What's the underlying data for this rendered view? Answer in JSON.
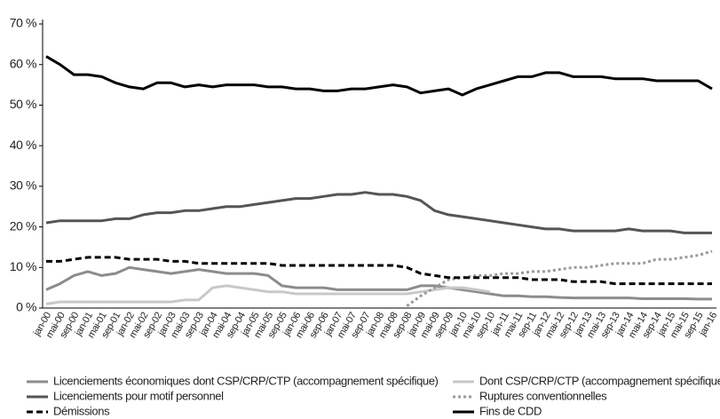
{
  "chart_data": {
    "type": "line",
    "categories": [
      "jan-00",
      "mai-00",
      "sep-00",
      "jan-01",
      "mai-01",
      "sep-01",
      "jan-02",
      "mai-02",
      "sep-02",
      "jan-03",
      "mai-03",
      "sep-03",
      "jan-04",
      "mai-04",
      "sep-04",
      "jan-05",
      "mai-05",
      "sep-05",
      "jan-06",
      "mai-06",
      "sep-06",
      "jan-07",
      "mai-07",
      "sep-07",
      "jan-08",
      "mai-08",
      "sep-08",
      "jan-09",
      "mai-09",
      "sep-09",
      "jan-10",
      "mai-10",
      "sep-10",
      "jan-11",
      "mai-11",
      "sep-11",
      "jan-12",
      "mai-12",
      "sep-12",
      "jan-13",
      "mai-13",
      "sep-13",
      "jan-14",
      "mai-14",
      "sep-14",
      "jan-15",
      "mai-15",
      "sep-15",
      "jan-16"
    ],
    "ylim": [
      0,
      70
    ],
    "yticks": [
      {
        "value": 0,
        "label": "0 %"
      },
      {
        "value": 10,
        "label": "10 %"
      },
      {
        "value": 20,
        "label": "20 %"
      },
      {
        "value": 30,
        "label": "30 %"
      },
      {
        "value": 40,
        "label": "40 %"
      },
      {
        "value": 50,
        "label": "50 %"
      },
      {
        "value": 60,
        "label": "60 %"
      },
      {
        "value": 70,
        "label": "70 %"
      }
    ],
    "series": [
      {
        "name": "Licenciements économiques dont CSP/CRP/CTP (accompagnement spécifique)",
        "color": "#8c8c8c",
        "dash": "solid",
        "values": [
          4.5,
          6,
          8,
          9,
          8,
          8.5,
          10,
          9.5,
          9,
          8.5,
          9,
          9.5,
          9,
          8.5,
          8.5,
          8.5,
          8,
          5.5,
          5,
          5,
          5,
          4.5,
          4.5,
          4.5,
          4.5,
          4.5,
          4.5,
          5.5,
          5.5,
          5,
          4.5,
          4,
          3.5,
          3,
          3,
          2.8,
          2.8,
          2.6,
          2.5,
          2.5,
          2.5,
          2.5,
          2.5,
          2.3,
          2.3,
          2.3,
          2.3,
          2.2,
          2.2
        ]
      },
      {
        "name": "Dont CSP/CRP/CTP (accompagnement spécifique)",
        "color": "#c8c8c8",
        "dash": "solid",
        "values": [
          1,
          1.5,
          1.5,
          1.5,
          1.5,
          1.5,
          1.5,
          1.5,
          1.5,
          1.5,
          2,
          2,
          5,
          5.5,
          5,
          4.5,
          4,
          4,
          3.5,
          3.5,
          3.5,
          3.5,
          3.5,
          3.5,
          3.5,
          3.5,
          3.5,
          4,
          4.5,
          5,
          5,
          4.5,
          4,
          null,
          null,
          null,
          null,
          null,
          null,
          null,
          null,
          null,
          null,
          null,
          null,
          null,
          null,
          null,
          null
        ]
      },
      {
        "name": "Licenciements pour motif personnel",
        "color": "#555555",
        "dash": "solid",
        "values": [
          21,
          21.5,
          21.5,
          21.5,
          21.5,
          22,
          22,
          23,
          23.5,
          23.5,
          24,
          24,
          24.5,
          25,
          25,
          25.5,
          26,
          26.5,
          27,
          27,
          27.5,
          28,
          28,
          28.5,
          28,
          28,
          27.5,
          26.5,
          24,
          23,
          22.5,
          22,
          21.5,
          21,
          20.5,
          20,
          19.5,
          19.5,
          19,
          19,
          19,
          19,
          19.5,
          19,
          19,
          19,
          18.5,
          18.5,
          18.5
        ]
      },
      {
        "name": "Ruptures conventionnelles",
        "color": "#999999",
        "dash": "dotted",
        "values": [
          null,
          null,
          null,
          null,
          null,
          null,
          null,
          null,
          null,
          null,
          null,
          null,
          null,
          null,
          null,
          null,
          null,
          null,
          null,
          null,
          null,
          null,
          null,
          null,
          null,
          null,
          0.5,
          3,
          5,
          7,
          7.5,
          8,
          8,
          8.5,
          8.5,
          9,
          9,
          9.5,
          10,
          10,
          10.5,
          11,
          11,
          11,
          12,
          12,
          12.5,
          13,
          14
        ]
      },
      {
        "name": "Démissions",
        "color": "#000000",
        "dash": "dashed",
        "values": [
          11.5,
          11.5,
          12,
          12.5,
          12.5,
          12.5,
          12,
          12,
          12,
          11.5,
          11.5,
          11,
          11,
          11,
          11,
          11,
          11,
          10.5,
          10.5,
          10.5,
          10.5,
          10.5,
          10.5,
          10.5,
          10.5,
          10.5,
          10,
          8.5,
          8,
          7.5,
          7.5,
          7.5,
          7.5,
          7.5,
          7.5,
          7,
          7,
          7,
          6.5,
          6.5,
          6.5,
          6,
          6,
          6,
          6,
          6,
          6,
          6,
          6
        ]
      },
      {
        "name": "Fins de CDD",
        "color": "#000000",
        "dash": "solid",
        "values": [
          62,
          60,
          57.5,
          57.5,
          57,
          55.5,
          54.5,
          54,
          55.5,
          55.5,
          54.5,
          55,
          54.5,
          55,
          55,
          55,
          54.5,
          54.5,
          54,
          54,
          53.5,
          53.5,
          54,
          54,
          54.5,
          55,
          54.5,
          53,
          53.5,
          54,
          52.5,
          54,
          55,
          56,
          57,
          57,
          58,
          58,
          57,
          57,
          57,
          56.5,
          56.5,
          56.5,
          56,
          56,
          56,
          56,
          54
        ]
      }
    ]
  }
}
